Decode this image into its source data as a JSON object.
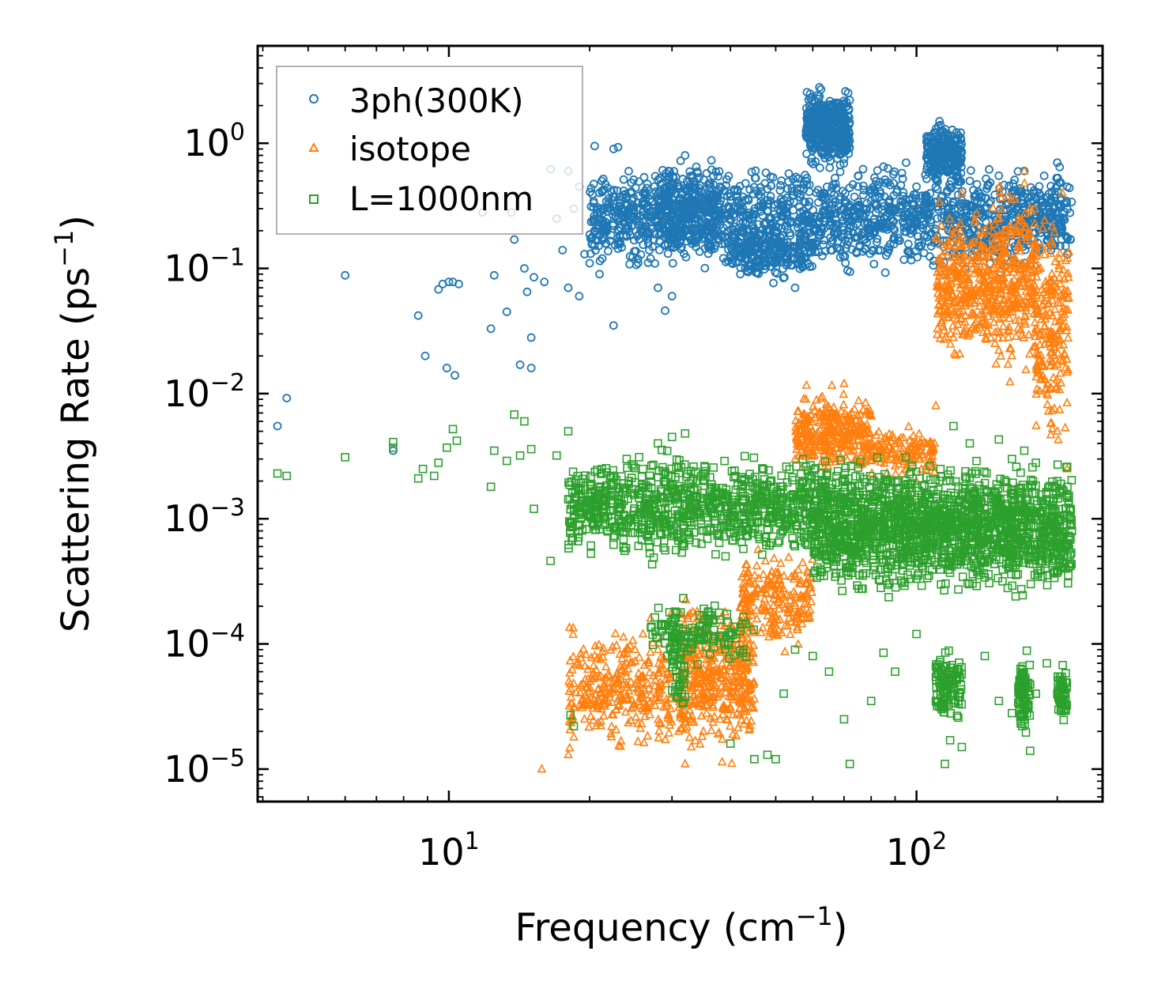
{
  "chart_data": {
    "type": "scatter",
    "title": "",
    "xlabel": "Frequency (cm",
    "xlabel_sup": "−1",
    "xlabel_end": ")",
    "ylabel": "Scattering Rate (ps",
    "ylabel_sup": "−1",
    "ylabel_end": ")",
    "x_scale": "log",
    "y_scale": "log",
    "xlim": [
      3.9,
      250
    ],
    "ylim": [
      5.5e-06,
      6.0
    ],
    "grid": false,
    "legend_position": "top-left",
    "x_ticks": [
      {
        "value": 10,
        "base": "10",
        "exp": "1"
      },
      {
        "value": 100,
        "base": "10",
        "exp": "2"
      }
    ],
    "y_ticks": [
      {
        "value": 1,
        "base": "10",
        "exp": "0"
      },
      {
        "value": 0.1,
        "base": "10",
        "exp": "−1"
      },
      {
        "value": 0.01,
        "base": "10",
        "exp": "−2"
      },
      {
        "value": 0.001,
        "base": "10",
        "exp": "−3"
      },
      {
        "value": 0.0001,
        "base": "10",
        "exp": "−4"
      },
      {
        "value": 1e-05,
        "base": "10",
        "exp": "−5"
      }
    ],
    "series": [
      {
        "name": "3ph(300K)",
        "marker": "circle",
        "color": "#1f77b4",
        "points": [
          [
            4.3,
            0.0055
          ],
          [
            4.5,
            0.0092
          ],
          [
            6.0,
            0.088
          ],
          [
            7.6,
            0.0035
          ],
          [
            8.6,
            0.042
          ],
          [
            8.9,
            0.02
          ],
          [
            9.5,
            0.068
          ],
          [
            9.7,
            0.075
          ],
          [
            10,
            0.078
          ],
          [
            10.2,
            0.078
          ],
          [
            10.5,
            0.075
          ],
          [
            9.9,
            0.016
          ],
          [
            10.3,
            0.014
          ],
          [
            11.8,
            0.28
          ],
          [
            12.3,
            0.033
          ],
          [
            12.5,
            0.088
          ],
          [
            13.6,
            0.28
          ],
          [
            13.3,
            0.045
          ],
          [
            13.8,
            0.17
          ],
          [
            14.2,
            0.017
          ],
          [
            14.5,
            0.1
          ],
          [
            14.7,
            0.065
          ],
          [
            15.0,
            0.028
          ],
          [
            15.0,
            0.016
          ],
          [
            15.2,
            0.085
          ],
          [
            16.0,
            0.078
          ],
          [
            16.5,
            0.62
          ],
          [
            18,
            0.6
          ],
          [
            18.5,
            0.3
          ],
          [
            19,
            0.45
          ],
          [
            19.5,
            0.13
          ],
          [
            20.5,
            0.95
          ],
          [
            21.5,
            0.2
          ],
          [
            22.5,
            0.9
          ],
          [
            23,
            0.93
          ],
          [
            22.5,
            0.035
          ],
          [
            17,
            0.25
          ],
          [
            17.5,
            0.14
          ],
          [
            18,
            0.07
          ],
          [
            19,
            0.06
          ],
          [
            20,
            0.11
          ],
          [
            21,
            0.09
          ],
          [
            24,
            0.18
          ],
          [
            26,
            0.4
          ],
          [
            27,
            0.12
          ],
          [
            28,
            0.07
          ],
          [
            29,
            0.046
          ],
          [
            30,
            0.06
          ],
          [
            32,
            0.8
          ],
          [
            34,
            0.35
          ],
          [
            36,
            0.15
          ],
          [
            38,
            0.45
          ],
          [
            40,
            0.25
          ],
          [
            42,
            0.09
          ],
          [
            45,
            0.2
          ],
          [
            48,
            0.35
          ],
          [
            50,
            0.12
          ],
          [
            55,
            0.07
          ],
          [
            58,
            0.5
          ],
          [
            62,
            2.8
          ],
          [
            64,
            1.6
          ],
          [
            66,
            1.0
          ],
          [
            70,
            0.75
          ],
          [
            75,
            0.55
          ],
          [
            80,
            0.4
          ],
          [
            85,
            0.65
          ],
          [
            90,
            0.3
          ],
          [
            95,
            0.7
          ],
          [
            100,
            0.45
          ],
          [
            105,
            0.35
          ],
          [
            112,
            1.5
          ],
          [
            115,
            1.2
          ],
          [
            118,
            0.9
          ],
          [
            122,
            0.6
          ],
          [
            125,
            0.35
          ],
          [
            130,
            0.5
          ],
          [
            140,
            0.3
          ],
          [
            150,
            0.55
          ],
          [
            160,
            0.4
          ],
          [
            170,
            0.6
          ],
          [
            185,
            0.35
          ],
          [
            200,
            0.7
          ],
          [
            210,
            0.45
          ]
        ],
        "clusters": [
          {
            "x": [
              20,
              215
            ],
            "y": [
              0.08,
              0.8
            ],
            "n": 1700
          },
          {
            "x": [
              58,
              72
            ],
            "y": [
              0.6,
              3.0
            ],
            "n": 420
          },
          {
            "x": [
              105,
              125
            ],
            "y": [
              0.4,
              1.7
            ],
            "n": 240
          },
          {
            "x": [
              28,
              38
            ],
            "y": [
              0.1,
              0.9
            ],
            "n": 220
          },
          {
            "x": [
              40,
              60
            ],
            "y": [
              0.07,
              0.25
            ],
            "n": 220
          }
        ]
      },
      {
        "name": "isotope",
        "marker": "triangle",
        "color": "#ff7f0e",
        "points": [
          [
            15.8,
            1e-05
          ],
          [
            18,
            1.3e-05
          ],
          [
            18.5,
            1.8e-05
          ],
          [
            19.5,
            2.5e-05
          ],
          [
            21,
            3.5e-05
          ],
          [
            22,
            4e-05
          ],
          [
            23,
            5e-05
          ],
          [
            24,
            7e-05
          ],
          [
            25,
            9e-05
          ],
          [
            26,
            0.00012
          ],
          [
            27,
            0.00016
          ],
          [
            28,
            9e-05
          ],
          [
            30,
            0.00018
          ],
          [
            31,
            2e-05
          ],
          [
            32,
            1.1e-05
          ],
          [
            33,
            1.5e-05
          ],
          [
            35,
            2e-05
          ],
          [
            38,
            2.5e-05
          ],
          [
            40,
            3e-05
          ],
          [
            42,
            0.00015
          ],
          [
            45,
            0.0003
          ],
          [
            50,
            0.00025
          ],
          [
            55,
            0.003
          ],
          [
            58,
            0.009
          ],
          [
            60,
            0.0045
          ],
          [
            65,
            0.003
          ],
          [
            70,
            0.012
          ],
          [
            72,
            0.006
          ],
          [
            80,
            0.004
          ],
          [
            90,
            0.003
          ],
          [
            100,
            0.002
          ],
          [
            110,
            0.008
          ],
          [
            115,
            0.05
          ],
          [
            120,
            0.1
          ],
          [
            125,
            0.4
          ],
          [
            130,
            0.03
          ],
          [
            140,
            0.2
          ],
          [
            150,
            0.05
          ],
          [
            160,
            0.02
          ],
          [
            170,
            0.6
          ],
          [
            175,
            0.3
          ],
          [
            180,
            0.05
          ],
          [
            190,
            0.01
          ],
          [
            200,
            0.005
          ],
          [
            205,
            0.4
          ],
          [
            210,
            0.0025
          ]
        ],
        "clusters": [
          {
            "x": [
              18,
              30
            ],
            "y": [
              1.2e-05,
              0.00016
            ],
            "n": 300
          },
          {
            "x": [
              31,
              45
            ],
            "y": [
              1e-05,
              0.0003
            ],
            "n": 420
          },
          {
            "x": [
              42,
              60
            ],
            "y": [
              7e-05,
              0.0008
            ],
            "n": 200
          },
          {
            "x": [
              55,
              80
            ],
            "y": [
              0.002,
              0.012
            ],
            "n": 320
          },
          {
            "x": [
              80,
              110
            ],
            "y": [
              0.002,
              0.006
            ],
            "n": 120
          },
          {
            "x": [
              110,
              145
            ],
            "y": [
              0.015,
              0.4
            ],
            "n": 300
          },
          {
            "x": [
              145,
              180
            ],
            "y": [
              0.01,
              0.6
            ],
            "n": 280
          },
          {
            "x": [
              180,
              212
            ],
            "y": [
              0.0025,
              0.4
            ],
            "n": 200
          }
        ]
      },
      {
        "name": "L=1000nm",
        "marker": "square",
        "color": "#2ca02c",
        "points": [
          [
            4.3,
            0.0023
          ],
          [
            4.5,
            0.0022
          ],
          [
            6.0,
            0.0031
          ],
          [
            7.6,
            0.0037
          ],
          [
            7.6,
            0.0041
          ],
          [
            8.6,
            0.0021
          ],
          [
            8.8,
            0.0025
          ],
          [
            9.3,
            0.0022
          ],
          [
            9.5,
            0.0028
          ],
          [
            9.9,
            0.0037
          ],
          [
            10.2,
            0.0052
          ],
          [
            10.4,
            0.0042
          ],
          [
            12.3,
            0.0018
          ],
          [
            12.5,
            0.0035
          ],
          [
            13.3,
            0.0029
          ],
          [
            13.8,
            0.0068
          ],
          [
            14.2,
            0.0032
          ],
          [
            14.5,
            0.006
          ],
          [
            15.0,
            0.0036
          ],
          [
            15.2,
            0.0012
          ],
          [
            16.5,
            0.00046
          ],
          [
            17,
            0.0032
          ],
          [
            18,
            0.005
          ],
          [
            20,
            0.0015
          ],
          [
            21,
            0.0016
          ],
          [
            22.5,
            0.00062
          ],
          [
            24,
            0.003
          ],
          [
            26,
            0.0025
          ],
          [
            28,
            0.004
          ],
          [
            30,
            0.0045
          ],
          [
            32,
            0.0048
          ],
          [
            18.2,
            2.7e-05
          ],
          [
            18.5,
            2.2e-05
          ],
          [
            40,
            1.6e-05
          ],
          [
            45,
            1.2e-05
          ],
          [
            48,
            1.3e-05
          ],
          [
            50,
            1.2e-05
          ],
          [
            52,
            4e-05
          ],
          [
            55,
            9e-05
          ],
          [
            60,
            8e-05
          ],
          [
            65,
            6e-05
          ],
          [
            70,
            2.5e-05
          ],
          [
            72,
            1.1e-05
          ],
          [
            80,
            3.5e-05
          ],
          [
            85,
            8.5e-05
          ],
          [
            90,
            6e-05
          ],
          [
            100,
            0.00012
          ],
          [
            110,
            3.5e-05
          ],
          [
            115,
            1.1e-05
          ],
          [
            118,
            1.7e-05
          ],
          [
            125,
            1.5e-05
          ],
          [
            140,
            8e-05
          ],
          [
            150,
            3.5e-05
          ],
          [
            160,
            2.8e-05
          ],
          [
            170,
            2.5e-05
          ],
          [
            175,
            1.4e-05
          ],
          [
            180,
            4e-05
          ],
          [
            190,
            7e-05
          ],
          [
            200,
            4e-05
          ],
          [
            208,
            3e-05
          ],
          [
            210,
            0.0026
          ],
          [
            215,
            0.0008
          ],
          [
            120,
            0.0055
          ],
          [
            130,
            0.004
          ],
          [
            150,
            0.0043
          ],
          [
            160,
            0.003
          ],
          [
            170,
            0.0035
          ],
          [
            180,
            0.0028
          ],
          [
            200,
            0.002
          ]
        ],
        "clusters": [
          {
            "x": [
              18,
              60
            ],
            "y": [
              0.0004,
              0.004
            ],
            "n": 900
          },
          {
            "x": [
              60,
              105
            ],
            "y": [
              0.0002,
              0.004
            ],
            "n": 800
          },
          {
            "x": [
              105,
              215
            ],
            "y": [
              0.0002,
              0.0035
            ],
            "n": 950
          },
          {
            "x": [
              30,
              32
            ],
            "y": [
              2e-05,
              0.0003
            ],
            "n": 60
          },
          {
            "x": [
              27,
              45
            ],
            "y": [
              6e-05,
              0.00025
            ],
            "n": 120
          },
          {
            "x": [
              110,
              125
            ],
            "y": [
              2e-05,
              0.0001
            ],
            "n": 120
          },
          {
            "x": [
              165,
              175
            ],
            "y": [
              1.5e-05,
              0.0001
            ],
            "n": 80
          },
          {
            "x": [
              200,
              210
            ],
            "y": [
              2e-05,
              8e-05
            ],
            "n": 60
          }
        ]
      }
    ]
  }
}
